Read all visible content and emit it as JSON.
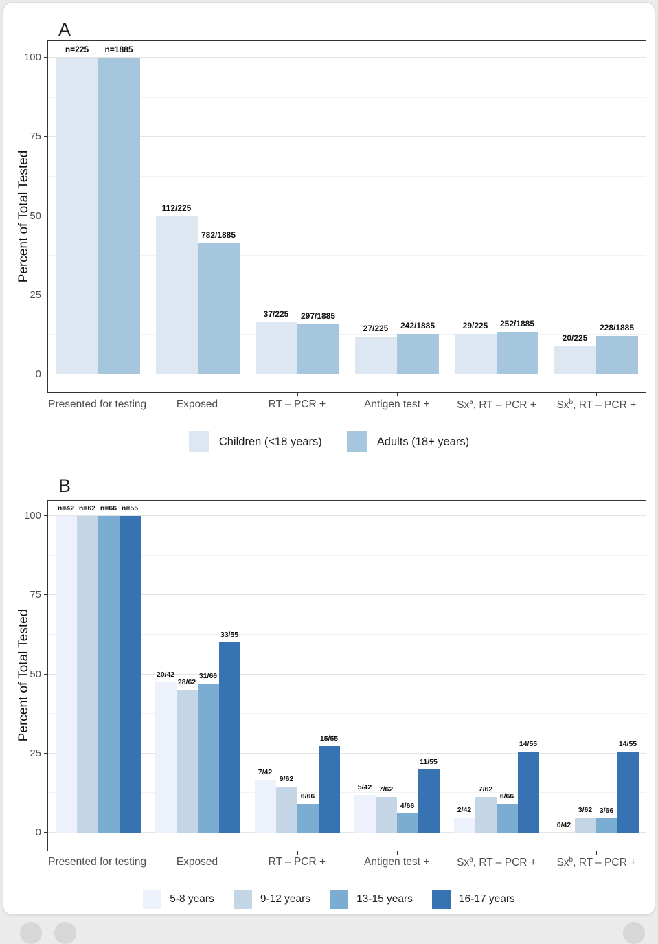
{
  "figure": {
    "panel_a_title": "A",
    "panel_b_title": "B",
    "y_axis_label": "Percent of Total Tested",
    "background_color": "#ffffff",
    "panel_border_color": "#333333"
  },
  "chart_data": [
    {
      "type": "bar",
      "panel": "A",
      "title": "A",
      "xlabel": "",
      "ylabel": "Percent of Total Tested",
      "ylim": [
        0,
        100
      ],
      "y_ticks": [
        0,
        25,
        50,
        75,
        100
      ],
      "y_minor_ticks": [
        12.5,
        37.5,
        62.5,
        87.5
      ],
      "grid": true,
      "legend_position": "bottom",
      "categories": [
        {
          "pre": "Presented for testing",
          "sup": "",
          "post": ""
        },
        {
          "pre": "Exposed",
          "sup": "",
          "post": ""
        },
        {
          "pre": "RT – PCR +",
          "sup": "",
          "post": ""
        },
        {
          "pre": "Antigen test +",
          "sup": "",
          "post": ""
        },
        {
          "pre": "Sx",
          "sup": "a",
          "post": ", RT – PCR +"
        },
        {
          "pre": "Sx",
          "sup": "b",
          "post": ", RT – PCR +"
        }
      ],
      "series": [
        {
          "name": "Children (<18 years)",
          "color": "#dde7f2",
          "values": [
            100,
            49.8,
            16.4,
            12.0,
            12.9,
            8.9
          ],
          "labels": [
            "n=225",
            "112/225",
            "37/225",
            "27/225",
            "29/225",
            "20/225"
          ]
        },
        {
          "name": "Adults (18+ years)",
          "color": "#a6c6dd",
          "values": [
            100,
            41.5,
            15.8,
            12.8,
            13.4,
            12.1
          ],
          "labels": [
            "n=1885",
            "782/1885",
            "297/1885",
            "242/1885",
            "252/1885",
            "228/1885"
          ]
        }
      ]
    },
    {
      "type": "bar",
      "panel": "B",
      "title": "B",
      "xlabel": "",
      "ylabel": "Percent of Total Tested",
      "ylim": [
        0,
        100
      ],
      "y_ticks": [
        0,
        25,
        50,
        75,
        100
      ],
      "y_minor_ticks": [
        12.5,
        37.5,
        62.5,
        87.5
      ],
      "grid": true,
      "legend_position": "bottom",
      "categories": [
        {
          "pre": "Presented for testing",
          "sup": "",
          "post": ""
        },
        {
          "pre": "Exposed",
          "sup": "",
          "post": ""
        },
        {
          "pre": "RT – PCR +",
          "sup": "",
          "post": ""
        },
        {
          "pre": "Antigen test +",
          "sup": "",
          "post": ""
        },
        {
          "pre": "Sx",
          "sup": "a",
          "post": ", RT – PCR +"
        },
        {
          "pre": "Sx",
          "sup": "b",
          "post": ", RT – PCR +"
        }
      ],
      "series": [
        {
          "name": "5-8 years",
          "color": "#edf1fb",
          "values": [
            100,
            47.6,
            16.7,
            11.9,
            4.8,
            0
          ],
          "labels": [
            "n=42",
            "20/42",
            "7/42",
            "5/42",
            "2/42",
            "0/42"
          ]
        },
        {
          "name": "9-12 years",
          "color": "#c4d6e6",
          "values": [
            100,
            45.2,
            14.5,
            11.3,
            11.3,
            4.8
          ],
          "labels": [
            "n=62",
            "28/62",
            "9/62",
            "7/62",
            "7/62",
            "3/62"
          ]
        },
        {
          "name": "13-15 years",
          "color": "#7badd3",
          "values": [
            100,
            47.0,
            9.1,
            6.1,
            9.1,
            4.5
          ],
          "labels": [
            "n=66",
            "31/66",
            "6/66",
            "4/66",
            "6/66",
            "3/66"
          ]
        },
        {
          "name": "16-17 years",
          "color": "#3773b3",
          "values": [
            100,
            60.0,
            27.3,
            20.0,
            25.5,
            25.5
          ],
          "labels": [
            "n=55",
            "33/55",
            "15/55",
            "11/55",
            "14/55",
            "14/55"
          ]
        }
      ]
    }
  ]
}
